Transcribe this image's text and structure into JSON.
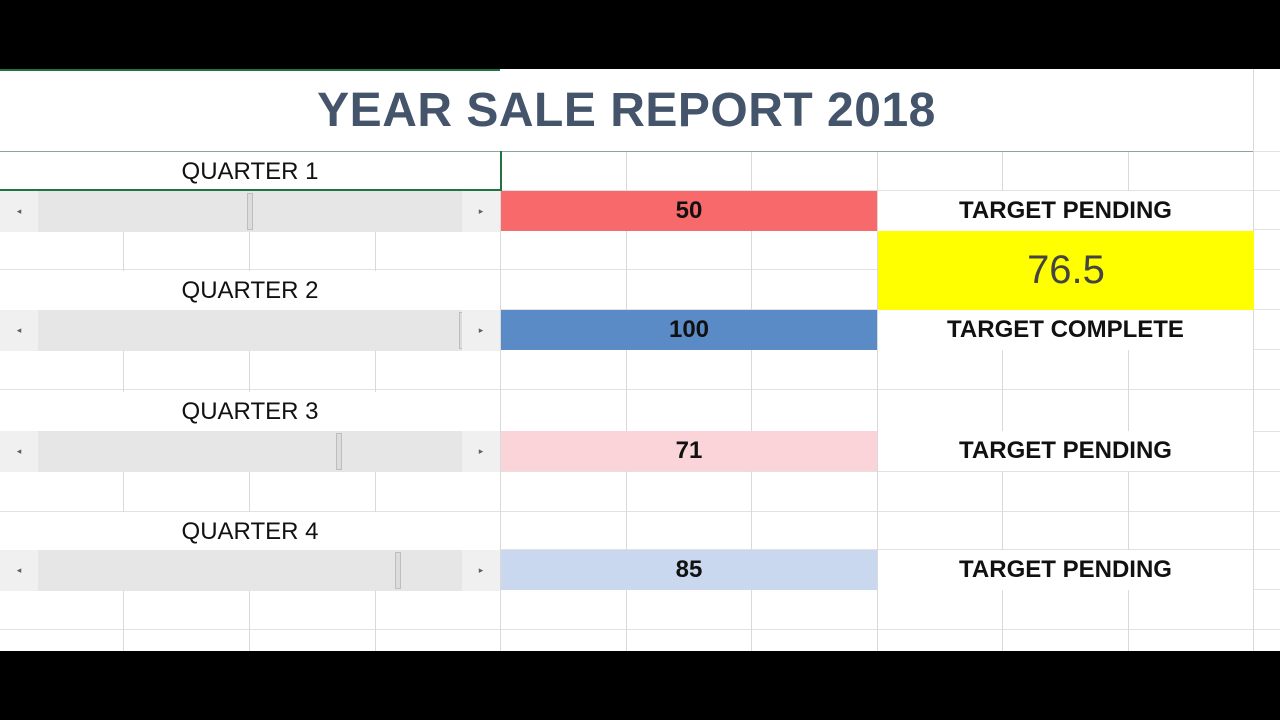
{
  "report": {
    "title": "YEAR SALE REPORT 2018",
    "average_value": "76.5",
    "average_color": "#ffff00"
  },
  "scrollbar_icons": {
    "left_arrow": "arrow-left-icon",
    "right_arrow": "arrow-right-icon",
    "left_glyph": "◂",
    "right_glyph": "▸"
  },
  "quarters": [
    {
      "label": "QUARTER 1",
      "value": "50",
      "slider_fraction": 0.5,
      "status": "TARGET PENDING",
      "fill_color": "#f8696b"
    },
    {
      "label": "QUARTER 2",
      "value": "100",
      "slider_fraction": 1.0,
      "status": "TARGET COMPLETE",
      "fill_color": "#5b8bc6"
    },
    {
      "label": "QUARTER 3",
      "value": "71",
      "slider_fraction": 0.71,
      "status": "TARGET PENDING",
      "fill_color": "#fad4d8"
    },
    {
      "label": "QUARTER 4",
      "value": "85",
      "slider_fraction": 0.85,
      "status": "TARGET PENDING",
      "fill_color": "#c9d8ee"
    }
  ]
}
